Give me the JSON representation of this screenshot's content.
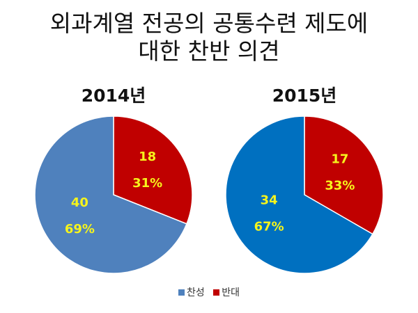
{
  "title_line1": "외과계열 전공의 공통수련 제도에",
  "title_line2": "대한 찬반 의견",
  "colors": {
    "label": "#f6f41c"
  },
  "chart_data": [
    {
      "type": "pie",
      "title": "2014년",
      "slices": [
        {
          "name": "찬성",
          "value": 40,
          "percent": "69%",
          "color": "#4f81bd"
        },
        {
          "name": "반대",
          "value": 18,
          "percent": "31%",
          "color": "#c00000"
        }
      ]
    },
    {
      "type": "pie",
      "title": "2015년",
      "slices": [
        {
          "name": "찬성",
          "value": 34,
          "percent": "67%",
          "color": "#0070c0"
        },
        {
          "name": "반대",
          "value": 17,
          "percent": "33%",
          "color": "#c00000"
        }
      ]
    }
  ],
  "legend": [
    {
      "name": "찬성",
      "color": "#4f81bd"
    },
    {
      "name": "반대",
      "color": "#c00000"
    }
  ]
}
